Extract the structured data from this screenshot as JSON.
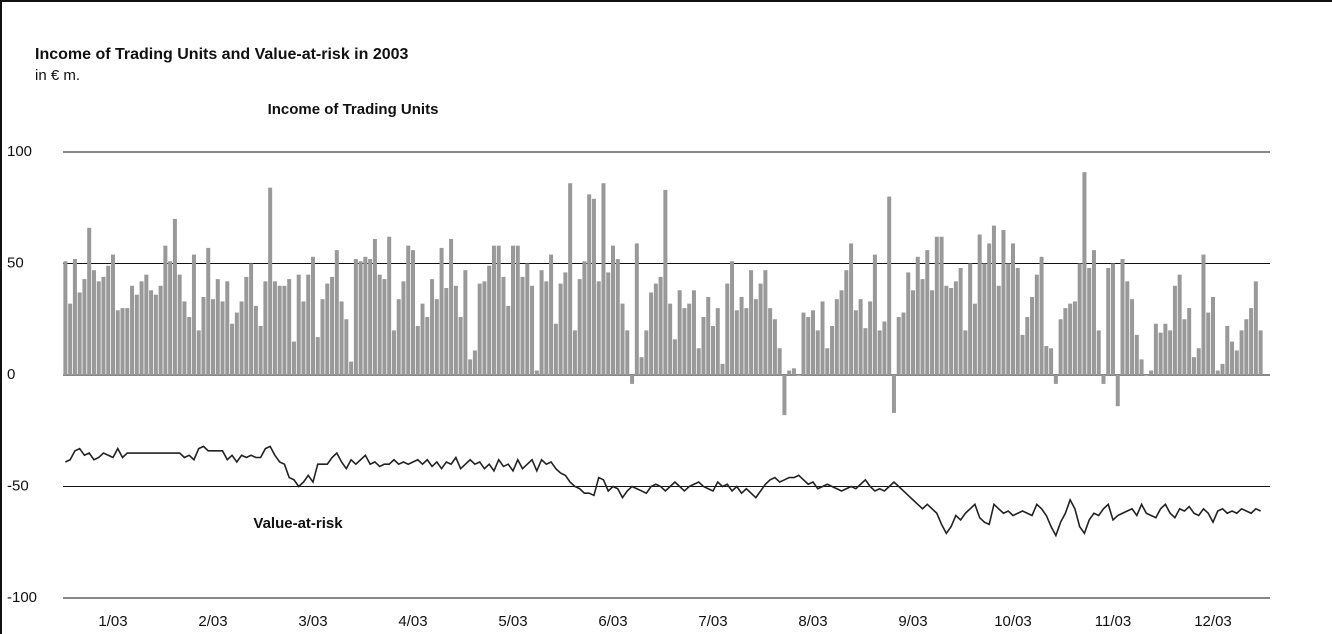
{
  "chart_data": {
    "type": "bar",
    "title": "Income of Trading Units and Value-at-risk in 2003",
    "subtitle": "in € m.",
    "categories": [
      null,
      null,
      null,
      null,
      null,
      null,
      null,
      null,
      null,
      null,
      "1/03",
      null,
      null,
      null,
      null,
      null,
      null,
      null,
      null,
      null,
      null,
      null,
      null,
      null,
      null,
      null,
      null,
      null,
      null,
      null,
      null,
      "2/03",
      null,
      null,
      null,
      null,
      null,
      null,
      null,
      null,
      null,
      null,
      null,
      null,
      null,
      null,
      null,
      null,
      null,
      null,
      null,
      null,
      "3/03",
      null,
      null,
      null,
      null,
      null,
      null,
      null,
      null,
      null,
      null,
      null,
      null,
      null,
      null,
      null,
      null,
      null,
      null,
      null,
      null,
      "4/03",
      null,
      null,
      null,
      null,
      null,
      null,
      null,
      null,
      null,
      null,
      null,
      null,
      null,
      null,
      null,
      null,
      null,
      null,
      null,
      null,
      "5/03",
      null,
      null,
      null,
      null,
      null,
      null,
      null,
      null,
      null,
      null,
      null,
      null,
      null,
      null,
      null,
      null,
      null,
      null,
      null,
      null,
      "6/03",
      null,
      null,
      null,
      null,
      null,
      null,
      null,
      null,
      null,
      null,
      null,
      null,
      null,
      null,
      null,
      null,
      null,
      null,
      null,
      null,
      "7/03",
      null,
      null,
      null,
      null,
      null,
      null,
      null,
      null,
      null,
      null,
      null,
      null,
      null,
      null,
      null,
      null,
      null,
      null,
      null,
      null,
      "8/03",
      null,
      null,
      null,
      null,
      null,
      null,
      null,
      null,
      null,
      null,
      null,
      null,
      null,
      null,
      null,
      null,
      null,
      null,
      null,
      null,
      "9/03",
      null,
      null,
      null,
      null,
      null,
      null,
      null,
      null,
      null,
      null,
      null,
      null,
      null,
      null,
      null,
      null,
      null,
      null,
      null,
      null,
      "10/03",
      null,
      null,
      null,
      null,
      null,
      null,
      null,
      null,
      null,
      null,
      null,
      null,
      null,
      null,
      null,
      null,
      null,
      null,
      null,
      null,
      "11/03",
      null,
      null,
      null,
      null,
      null,
      null,
      null,
      null,
      null,
      null,
      null,
      null,
      null,
      null,
      null,
      null,
      null,
      null,
      null,
      null,
      "12/03",
      null,
      null,
      null,
      null,
      null,
      null,
      null,
      null,
      null,
      null
    ],
    "series": [
      {
        "name": "Income of Trading Units",
        "type": "bar",
        "color": "#999999",
        "values": [
          51,
          32,
          52,
          37,
          43,
          66,
          47,
          42,
          44,
          49,
          54,
          29,
          30,
          30,
          40,
          36,
          42,
          45,
          38,
          36,
          40,
          58,
          51,
          70,
          45,
          33,
          26,
          54,
          20,
          35,
          57,
          34,
          43,
          33,
          42,
          23,
          28,
          33,
          44,
          50,
          31,
          22,
          42,
          84,
          42,
          40,
          40,
          43,
          15,
          45,
          33,
          45,
          53,
          17,
          34,
          41,
          44,
          56,
          33,
          25,
          6,
          52,
          51,
          53,
          52,
          61,
          45,
          43,
          62,
          20,
          34,
          42,
          58,
          56,
          22,
          32,
          26,
          43,
          34,
          57,
          39,
          61,
          40,
          26,
          47,
          7,
          11,
          41,
          42,
          49,
          58,
          58,
          44,
          31,
          58,
          58,
          44,
          50,
          40,
          2,
          47,
          42,
          54,
          23,
          41,
          46,
          86,
          20,
          43,
          51,
          81,
          79,
          42,
          86,
          46,
          58,
          52,
          32,
          20,
          -4,
          59,
          8,
          20,
          37,
          41,
          44,
          83,
          32,
          16,
          38,
          30,
          32,
          38,
          12,
          26,
          35,
          22,
          30,
          5,
          41,
          51,
          29,
          35,
          30,
          47,
          34,
          41,
          47,
          30,
          25,
          12,
          -18,
          2,
          3,
          0,
          28,
          26,
          29,
          20,
          33,
          12,
          22,
          34,
          38,
          47,
          59,
          29,
          34,
          21,
          33,
          54,
          20,
          24,
          80,
          -17,
          26,
          28,
          46,
          38,
          53,
          43,
          56,
          38,
          62,
          62,
          40,
          39,
          42,
          48,
          20,
          50,
          32,
          63,
          50,
          59,
          67,
          40,
          65,
          50,
          59,
          48,
          18,
          26,
          35,
          45,
          53,
          13,
          12,
          -4,
          25,
          30,
          32,
          33,
          50,
          91,
          48,
          56,
          20,
          -4,
          48,
          50,
          -14,
          52,
          42,
          34,
          18,
          7,
          0,
          2,
          23,
          19,
          23,
          20,
          40,
          45,
          25,
          30,
          8,
          12,
          54,
          28,
          35,
          2,
          5,
          22,
          15,
          11,
          20,
          25,
          30,
          42,
          20
        ]
      },
      {
        "name": "Value-at-risk",
        "type": "line",
        "color": "#222222",
        "values": [
          -39,
          -38,
          -34,
          -33,
          -36,
          -35,
          -38,
          -37,
          -35,
          -36,
          -37,
          -33,
          -37,
          -35,
          -35,
          -35,
          -35,
          -35,
          -35,
          -35,
          -35,
          -35,
          -35,
          -35,
          -35,
          -37,
          -36,
          -38,
          -33,
          -32,
          -34,
          -34,
          -34,
          -34,
          -38,
          -36,
          -39,
          -36,
          -37,
          -36,
          -37,
          -37,
          -33,
          -32,
          -36,
          -39,
          -40,
          -46,
          -47,
          -50,
          -48,
          -45,
          -48,
          -40,
          -40,
          -40,
          -37,
          -35,
          -39,
          -42,
          -38,
          -40,
          -38,
          -36,
          -40,
          -39,
          -41,
          -40,
          -40,
          -38,
          -40,
          -39,
          -40,
          -39,
          -38,
          -40,
          -38,
          -41,
          -39,
          -42,
          -39,
          -40,
          -37,
          -42,
          -40,
          -38,
          -40,
          -39,
          -42,
          -40,
          -43,
          -38,
          -41,
          -40,
          -43,
          -38,
          -42,
          -40,
          -38,
          -43,
          -38,
          -40,
          -39,
          -42,
          -44,
          -45,
          -48,
          -50,
          -51,
          -53,
          -53,
          -54,
          -46,
          -47,
          -52,
          -50,
          -51,
          -55,
          -52,
          -50,
          -51,
          -52,
          -53,
          -50,
          -49,
          -50,
          -52,
          -50,
          -48,
          -50,
          -52,
          -50,
          -49,
          -48,
          -50,
          -51,
          -52,
          -48,
          -50,
          -49,
          -52,
          -50,
          -53,
          -51,
          -53,
          -55,
          -52,
          -49,
          -47,
          -46,
          -48,
          -47,
          -46,
          -46,
          -45,
          -47,
          -49,
          -48,
          -51,
          -50,
          -49,
          -50,
          -51,
          -52,
          -51,
          -50,
          -51,
          -49,
          -47,
          -50,
          -52,
          -51,
          -52,
          -50,
          -48,
          -50,
          -52,
          -54,
          -56,
          -58,
          -60,
          -58,
          -60,
          -62,
          -67,
          -71,
          -68,
          -63,
          -65,
          -62,
          -60,
          -58,
          -64,
          -66,
          -67,
          -58,
          -60,
          -62,
          -61,
          -63,
          -62,
          -61,
          -62,
          -63,
          -58,
          -60,
          -63,
          -68,
          -72,
          -66,
          -62,
          -56,
          -60,
          -68,
          -71,
          -65,
          -62,
          -63,
          -60,
          -58,
          -65,
          -63,
          -62,
          -61,
          -60,
          -63,
          -58,
          -62,
          -63,
          -64,
          -60,
          -58,
          -62,
          -64,
          -60,
          -61,
          -59,
          -62,
          -63,
          -60,
          -62,
          -66,
          -61,
          -60,
          -62,
          -61,
          -62,
          -60,
          -61,
          -62,
          -60,
          -61
        ]
      }
    ],
    "ylim": [
      -100,
      100
    ],
    "yticks": [
      100,
      50,
      0,
      -50,
      -100
    ],
    "grid": true
  }
}
